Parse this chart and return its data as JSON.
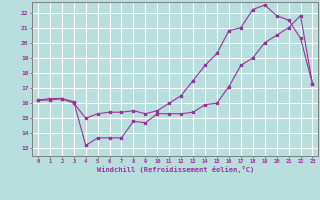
{
  "xlabel": "Windchill (Refroidissement éolien,°C)",
  "xlim": [
    -0.5,
    23.5
  ],
  "ylim": [
    12.5,
    22.7
  ],
  "xticks": [
    0,
    1,
    2,
    3,
    4,
    5,
    6,
    7,
    8,
    9,
    10,
    11,
    12,
    13,
    14,
    15,
    16,
    17,
    18,
    19,
    20,
    21,
    22,
    23
  ],
  "yticks": [
    13,
    14,
    15,
    16,
    17,
    18,
    19,
    20,
    21,
    22
  ],
  "line_color": "#993399",
  "bg_color": "#b8dede",
  "grid_color": "#ffffff",
  "line1_x": [
    0,
    1,
    2,
    3,
    4,
    5,
    6,
    7,
    8,
    9,
    10,
    11,
    12,
    13,
    14,
    15,
    16,
    17,
    18,
    19,
    20,
    21,
    22,
    23
  ],
  "line1_y": [
    16.2,
    16.3,
    16.3,
    16.1,
    13.2,
    13.7,
    13.7,
    13.7,
    14.8,
    14.7,
    15.3,
    15.3,
    15.3,
    15.4,
    15.9,
    16.0,
    17.1,
    18.5,
    19.0,
    20.0,
    20.5,
    21.0,
    21.8,
    17.3
  ],
  "line2_x": [
    0,
    1,
    2,
    3,
    4,
    5,
    6,
    7,
    8,
    9,
    10,
    11,
    12,
    13,
    14,
    15,
    16,
    17,
    18,
    19,
    20,
    21,
    22,
    23
  ],
  "line2_y": [
    16.2,
    16.2,
    16.3,
    16.0,
    15.0,
    15.3,
    15.4,
    15.4,
    15.5,
    15.3,
    15.5,
    16.0,
    16.5,
    17.5,
    18.5,
    19.3,
    20.8,
    21.0,
    22.2,
    22.5,
    21.8,
    21.5,
    20.3,
    17.3
  ]
}
